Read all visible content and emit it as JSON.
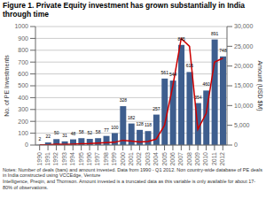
{
  "chart_data": {
    "type": "bar",
    "title": "Figure 1. Private Equity investment has grown substantially in India through time",
    "notes": "Notes: Number of deals (bars) and amount invested. Data from 1990 - Q1 2012. Non country-wide database of PE deals in India constructed using VCCEdge, Venture\nIntelligence, Preqin, and Thomson. Amount invested is a truncated data as this variable is only available for about 17-80% of observations.",
    "categories": [
      "1990",
      "1991",
      "1992",
      "1993",
      "1994",
      "1995",
      "1996",
      "1997",
      "1998",
      "1999",
      "2000",
      "2001",
      "2002",
      "2003",
      "2004",
      "2005",
      "2006",
      "2007",
      "2008",
      "2009",
      "2010",
      "2011",
      "2012"
    ],
    "series": [
      {
        "type": "bar",
        "color": "#3E5E8E",
        "data_labels": true,
        "values": [
          2,
          22,
          50,
          31,
          48,
          58,
          52,
          58,
          77,
          100,
          328,
          182,
          128,
          118,
          257,
          561,
          544,
          845,
          616,
          354,
          460,
          891,
          748
        ]
      },
      {
        "type": "line",
        "color": "#CC0000",
        "axis": "y2",
        "values": [
          50,
          80,
          200,
          150,
          250,
          350,
          400,
          500,
          600,
          700,
          1200,
          1000,
          800,
          900,
          1500,
          5000,
          15000,
          27000,
          25000,
          4000,
          8000,
          21000,
          22000
        ]
      }
    ],
    "ylabel": "No. of PE Investments",
    "y2label": "Amount (USD $M)",
    "ylim": [
      0,
      1000
    ],
    "yticks": [
      0,
      100,
      200,
      300,
      400,
      500,
      600,
      700,
      800,
      900,
      1000
    ],
    "y2lim": [
      0,
      30000
    ],
    "y2ticks": [
      0,
      {
        "value": 5000,
        "label": "5,000"
      },
      {
        "value": 10000,
        "label": "10,000"
      },
      {
        "value": 15000,
        "label": "15,000"
      },
      {
        "value": 20000,
        "label": "20,000"
      },
      {
        "value": 25000,
        "label": "25,000"
      },
      {
        "value": 30000,
        "label": "30,000"
      }
    ],
    "grid": true
  }
}
